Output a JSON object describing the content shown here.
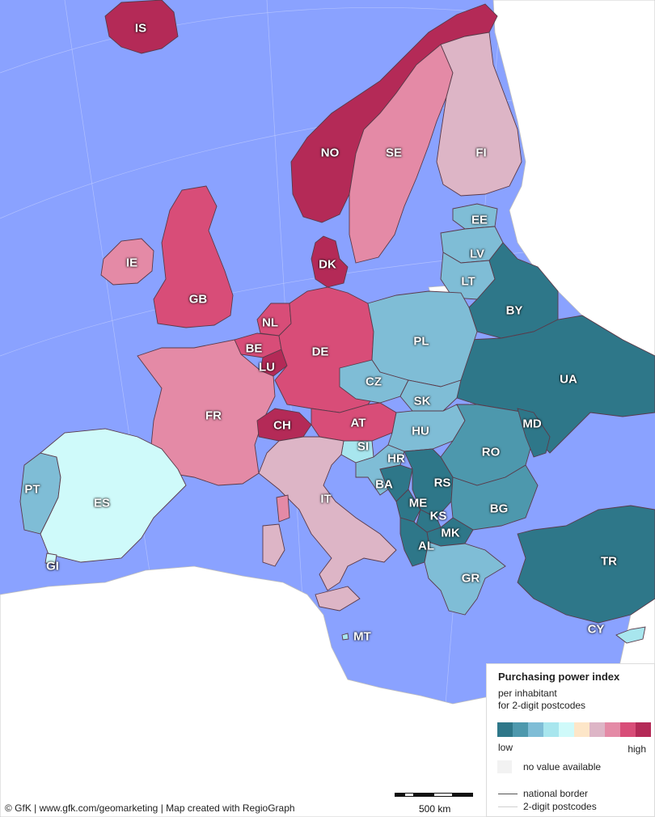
{
  "legend": {
    "title": "Purchasing power index",
    "subtitle_line1": "per inhabitant",
    "subtitle_line2": "for 2-digit postcodes",
    "low_label": "low",
    "high_label": "high",
    "no_value_label": "no value available",
    "national_border_label": "national border",
    "postcode_label": "2-digit postcodes",
    "colors": [
      "#2e7789",
      "#4d98ad",
      "#7fbdd6",
      "#a8e6ee",
      "#cffafa",
      "#fde6c8",
      "#ddb5c6",
      "#e48aa6",
      "#d84d78",
      "#b42a57"
    ]
  },
  "credits": "© GfK | www.gfk.com/geomarketing | Map created with RegioGraph",
  "scale": {
    "label": "500 km"
  },
  "countries": [
    {
      "code": "IS",
      "level": 9
    },
    {
      "code": "NO",
      "level": 9
    },
    {
      "code": "SE",
      "level": 7
    },
    {
      "code": "FI",
      "level": 6
    },
    {
      "code": "EE",
      "level": 2
    },
    {
      "code": "LV",
      "level": 2
    },
    {
      "code": "LT",
      "level": 2
    },
    {
      "code": "DK",
      "level": 9
    },
    {
      "code": "IE",
      "level": 7
    },
    {
      "code": "GB",
      "level": 8
    },
    {
      "code": "NL",
      "level": 8
    },
    {
      "code": "BE",
      "level": 8
    },
    {
      "code": "LU",
      "level": 9
    },
    {
      "code": "DE",
      "level": 8
    },
    {
      "code": "PL",
      "level": 2
    },
    {
      "code": "BY",
      "level": 0
    },
    {
      "code": "UA",
      "level": 0
    },
    {
      "code": "CZ",
      "level": 2
    },
    {
      "code": "SK",
      "level": 2
    },
    {
      "code": "FR",
      "level": 7
    },
    {
      "code": "CH",
      "level": 9
    },
    {
      "code": "AT",
      "level": 8
    },
    {
      "code": "SI",
      "level": 3
    },
    {
      "code": "HU",
      "level": 2
    },
    {
      "code": "MD",
      "level": 0
    },
    {
      "code": "RO",
      "level": 1
    },
    {
      "code": "HR",
      "level": 2
    },
    {
      "code": "BA",
      "level": 0
    },
    {
      "code": "RS",
      "level": 0
    },
    {
      "code": "ME",
      "level": 0
    },
    {
      "code": "KS",
      "level": 0
    },
    {
      "code": "BG",
      "level": 1
    },
    {
      "code": "MK",
      "level": 0
    },
    {
      "code": "AL",
      "level": 0
    },
    {
      "code": "PT",
      "level": 2
    },
    {
      "code": "ES",
      "level": 4
    },
    {
      "code": "GI",
      "level": 4
    },
    {
      "code": "IT",
      "level": 6
    },
    {
      "code": "GR",
      "level": 2
    },
    {
      "code": "TR",
      "level": 0
    },
    {
      "code": "MT",
      "level": 3
    },
    {
      "code": "CY",
      "level": 3
    }
  ]
}
